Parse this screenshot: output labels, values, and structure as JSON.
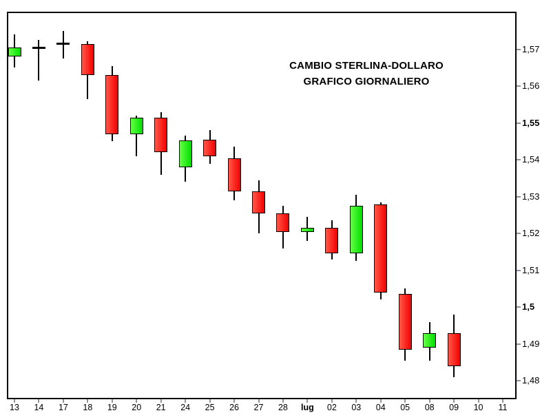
{
  "chart_data": {
    "type": "candlestick",
    "title_line1": "CAMBIO STERLINA-DOLLARO",
    "title_line2": "GRAFICO GIORNALIERO",
    "grid": false,
    "legend": false,
    "ylim": [
      1.475,
      1.58
    ],
    "y_axis": {
      "side": "right",
      "ticks": [
        {
          "label": "1,57",
          "value": 1.57,
          "bold": false
        },
        {
          "label": "1,56",
          "value": 1.56,
          "bold": false
        },
        {
          "label": "1,55",
          "value": 1.55,
          "bold": true
        },
        {
          "label": "1,54",
          "value": 1.54,
          "bold": false
        },
        {
          "label": "1,53",
          "value": 1.53,
          "bold": false
        },
        {
          "label": "1,52",
          "value": 1.52,
          "bold": false
        },
        {
          "label": "1,51",
          "value": 1.51,
          "bold": false
        },
        {
          "label": "1,5",
          "value": 1.5,
          "bold": true
        },
        {
          "label": "1,49",
          "value": 1.49,
          "bold": false
        },
        {
          "label": "1,48",
          "value": 1.48,
          "bold": false
        }
      ]
    },
    "x_axis": {
      "labels": [
        {
          "label": "13",
          "bold": false
        },
        {
          "label": "14",
          "bold": false
        },
        {
          "label": "17",
          "bold": false
        },
        {
          "label": "18",
          "bold": false
        },
        {
          "label": "19",
          "bold": false
        },
        {
          "label": "20",
          "bold": false
        },
        {
          "label": "21",
          "bold": false
        },
        {
          "label": "24",
          "bold": false
        },
        {
          "label": "25",
          "bold": false
        },
        {
          "label": "26",
          "bold": false
        },
        {
          "label": "27",
          "bold": false
        },
        {
          "label": "28",
          "bold": false
        },
        {
          "label": "lug",
          "bold": true
        },
        {
          "label": "02",
          "bold": false
        },
        {
          "label": "03",
          "bold": false
        },
        {
          "label": "04",
          "bold": false
        },
        {
          "label": "05",
          "bold": false
        },
        {
          "label": "08",
          "bold": false
        },
        {
          "label": "09",
          "bold": false
        },
        {
          "label": "10",
          "bold": false
        },
        {
          "label": "11",
          "bold": false
        }
      ]
    },
    "candles": [
      {
        "date": "13",
        "open": 1.568,
        "high": 1.574,
        "low": 1.565,
        "close": 1.5705,
        "kind": "up"
      },
      {
        "date": "14",
        "open": 1.5705,
        "high": 1.5725,
        "low": 1.5615,
        "close": 1.5705,
        "kind": "doji"
      },
      {
        "date": "17",
        "open": 1.5715,
        "high": 1.575,
        "low": 1.5675,
        "close": 1.5715,
        "kind": "doji"
      },
      {
        "date": "18",
        "open": 1.5715,
        "high": 1.5722,
        "low": 1.5565,
        "close": 1.563,
        "kind": "down"
      },
      {
        "date": "19",
        "open": 1.563,
        "high": 1.5655,
        "low": 1.545,
        "close": 1.547,
        "kind": "down"
      },
      {
        "date": "20",
        "open": 1.547,
        "high": 1.552,
        "low": 1.541,
        "close": 1.5515,
        "kind": "up"
      },
      {
        "date": "21",
        "open": 1.5515,
        "high": 1.553,
        "low": 1.536,
        "close": 1.542,
        "kind": "down"
      },
      {
        "date": "24",
        "open": 1.538,
        "high": 1.5465,
        "low": 1.534,
        "close": 1.5452,
        "kind": "up"
      },
      {
        "date": "25",
        "open": 1.5455,
        "high": 1.548,
        "low": 1.539,
        "close": 1.541,
        "kind": "down"
      },
      {
        "date": "26",
        "open": 1.5405,
        "high": 1.5435,
        "low": 1.529,
        "close": 1.5315,
        "kind": "down"
      },
      {
        "date": "27",
        "open": 1.5315,
        "high": 1.5345,
        "low": 1.52,
        "close": 1.5255,
        "kind": "down"
      },
      {
        "date": "28",
        "open": 1.5255,
        "high": 1.5275,
        "low": 1.516,
        "close": 1.5205,
        "kind": "down"
      },
      {
        "date": "lug",
        "open": 1.5205,
        "high": 1.5245,
        "low": 1.518,
        "close": 1.5216,
        "kind": "up"
      },
      {
        "date": "02",
        "open": 1.5215,
        "high": 1.5235,
        "low": 1.513,
        "close": 1.5147,
        "kind": "down"
      },
      {
        "date": "03",
        "open": 1.5147,
        "high": 1.5305,
        "low": 1.5125,
        "close": 1.5276,
        "kind": "up"
      },
      {
        "date": "04",
        "open": 1.5279,
        "high": 1.5285,
        "low": 1.502,
        "close": 1.504,
        "kind": "down"
      },
      {
        "date": "05",
        "open": 1.5035,
        "high": 1.505,
        "low": 1.4855,
        "close": 1.4885,
        "kind": "down"
      },
      {
        "date": "08",
        "open": 1.489,
        "high": 1.496,
        "low": 1.4855,
        "close": 1.493,
        "kind": "up"
      },
      {
        "date": "09",
        "open": 1.493,
        "high": 1.498,
        "low": 1.481,
        "close": 1.484,
        "kind": "down"
      }
    ],
    "colors": {
      "background": "#ffffff",
      "frame": "#000000",
      "text": "#000000",
      "wick": "#000000",
      "outline": "#000000",
      "up_body_light": "#66ff44",
      "up_body_dark": "#00dd00",
      "down_body_light": "#ff5848",
      "down_body_dark": "#f20000",
      "axis_tick": "#8a949e"
    }
  }
}
